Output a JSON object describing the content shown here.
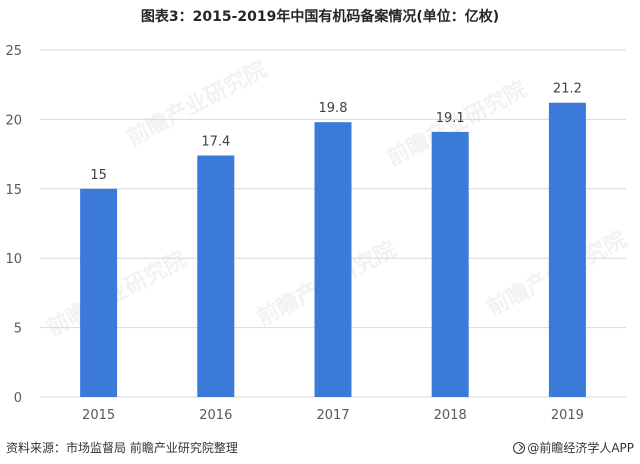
{
  "title": "图表3：2015-2019年中国有机码备案情况(单位：亿枚)",
  "source": "资料来源：市场监督局 前瞻产业研究院整理",
  "brand": "@前瞻经济学人APP",
  "watermark": "前瞻产业研究院",
  "colors": {
    "bar": "#3c7ad9",
    "grid": "#d9d9d9",
    "axis_text": "#595959",
    "label_text": "#404040"
  },
  "chart_data": {
    "type": "bar",
    "title": "图表3：2015-2019年中国有机码备案情况(单位：亿枚)",
    "categories": [
      "2015",
      "2016",
      "2017",
      "2018",
      "2019"
    ],
    "values": [
      15,
      17.4,
      19.8,
      19.1,
      21.2
    ],
    "value_labels": [
      "15",
      "17.4",
      "19.8",
      "19.1",
      "21.2"
    ],
    "ylim": [
      0,
      25
    ],
    "yticks": [
      "0",
      "5",
      "10",
      "15",
      "20",
      "25"
    ],
    "xlabel": "",
    "ylabel": "",
    "grid": true,
    "legend": "none"
  }
}
